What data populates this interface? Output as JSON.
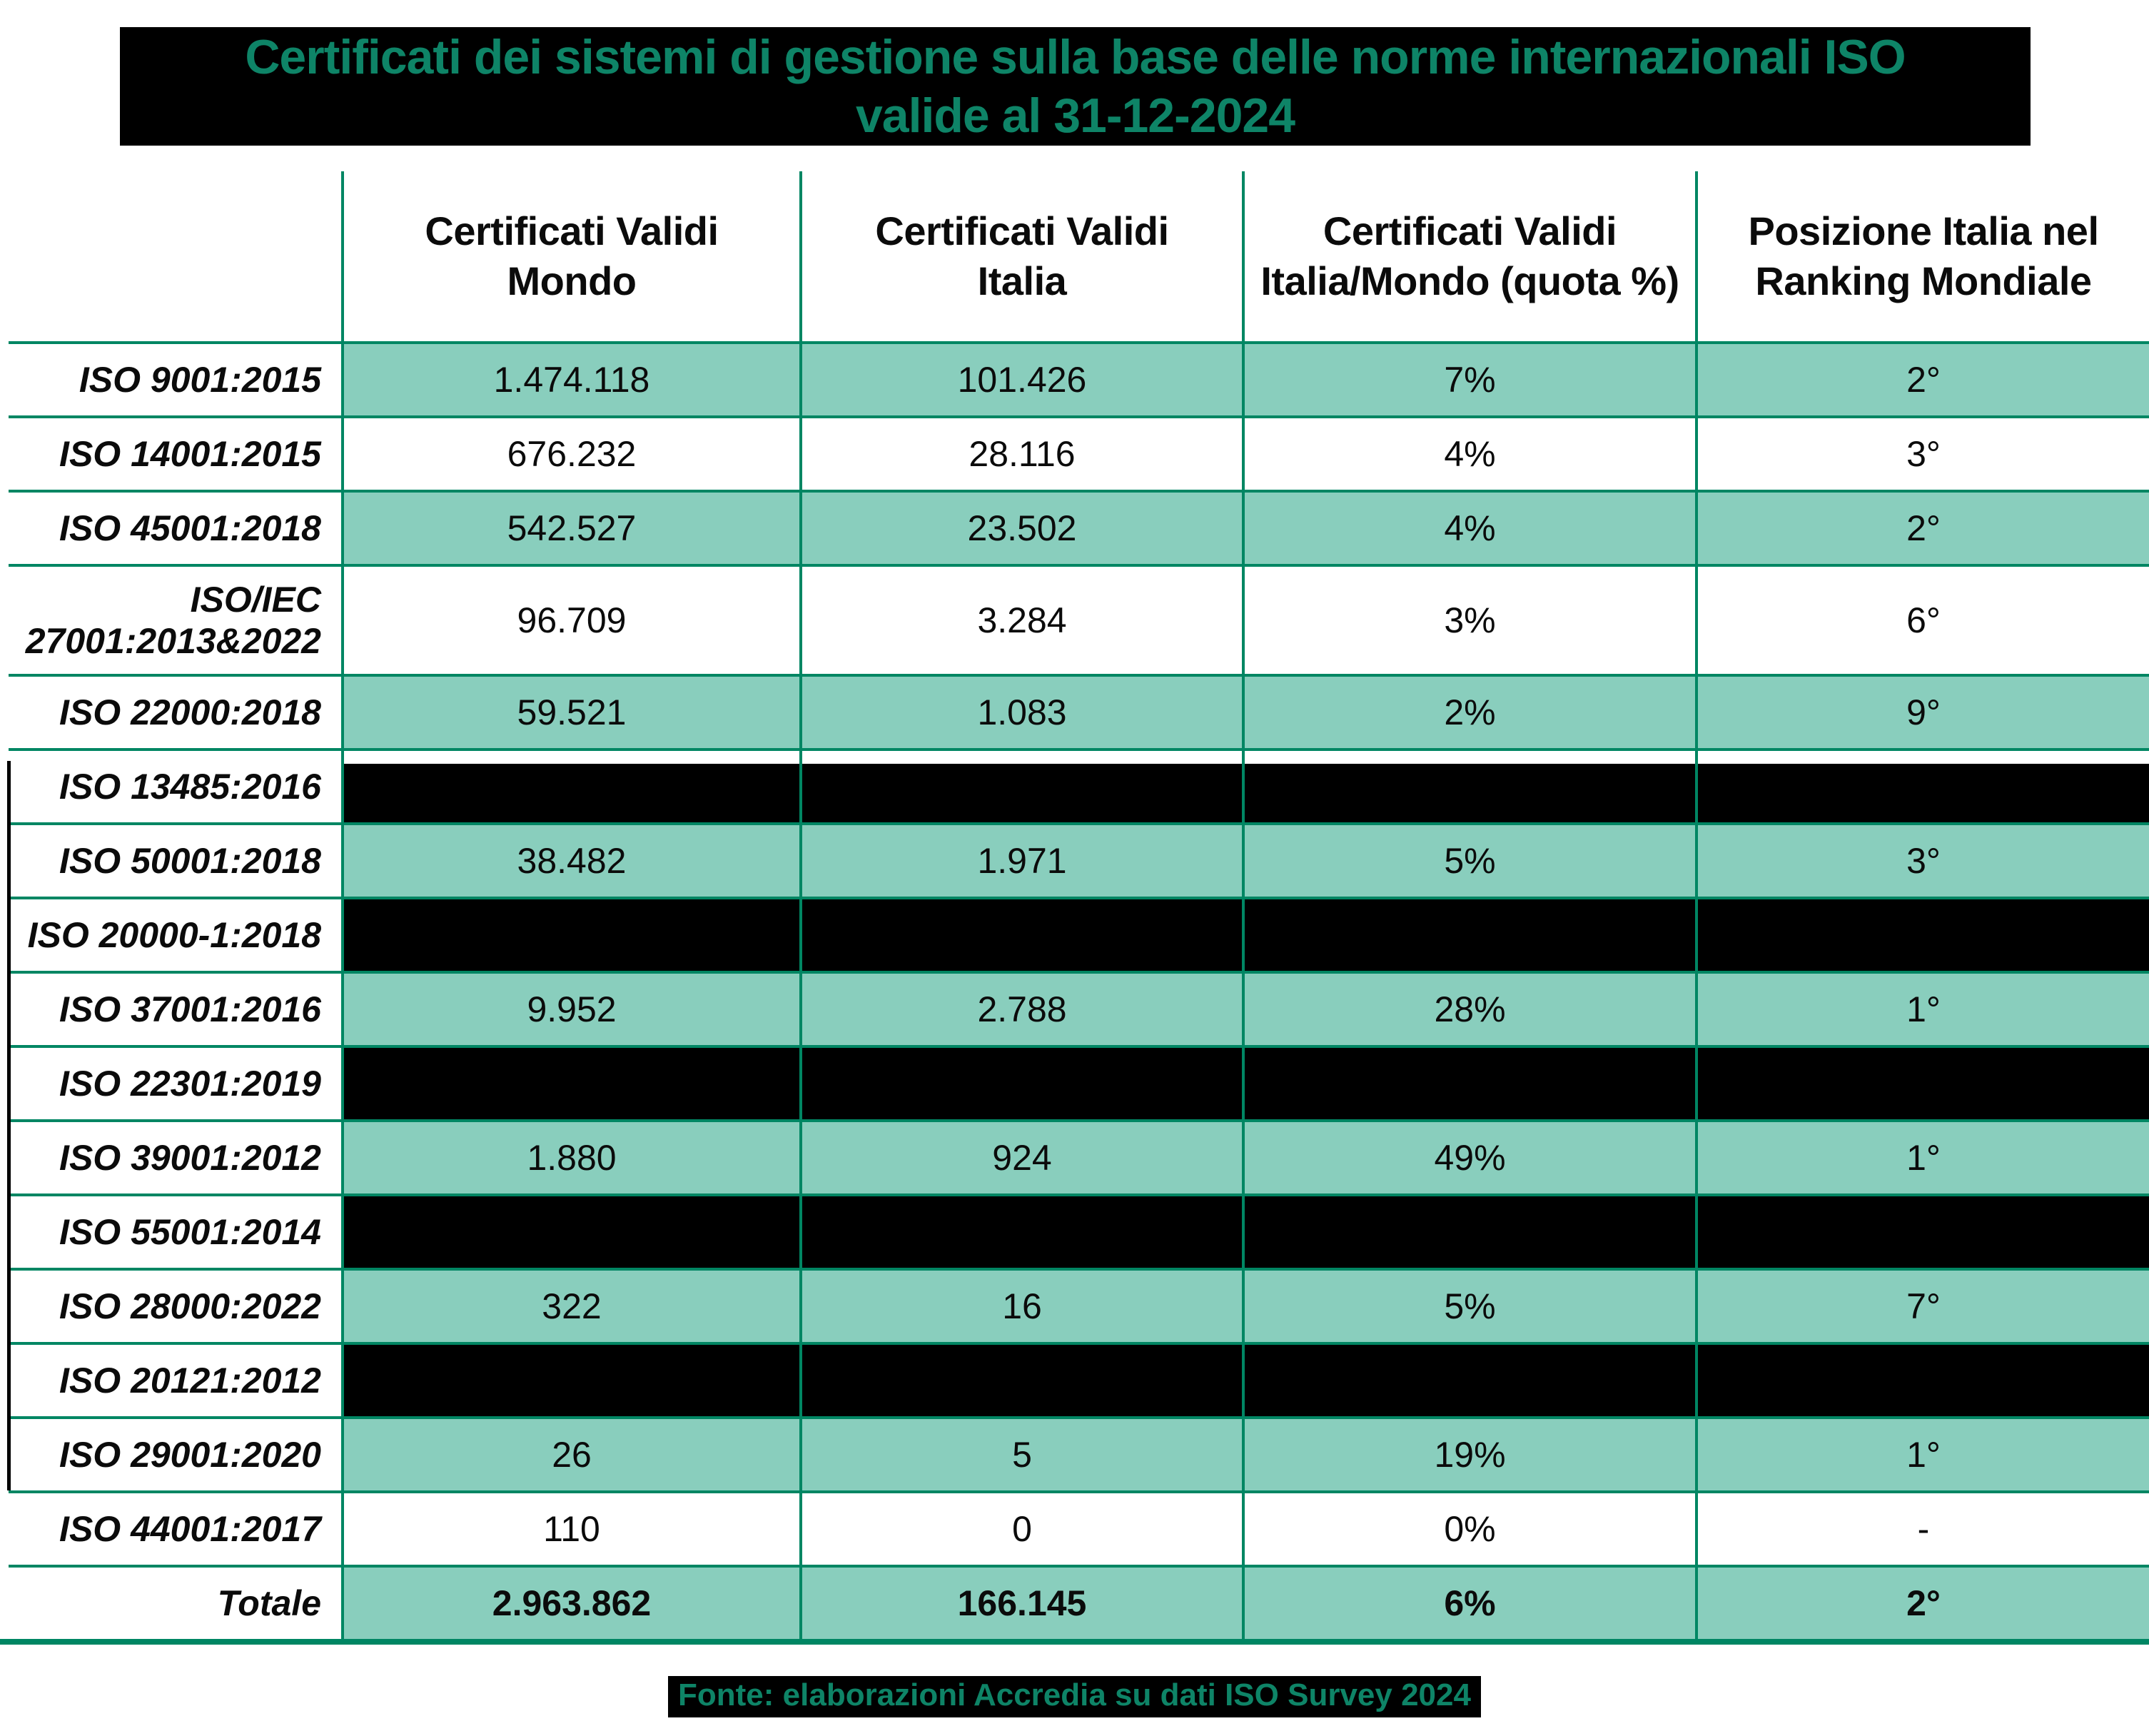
{
  "title": {
    "text": "Certificati dei sistemi di gestione sulla base delle norme internazionali ISO\nvalide al 31-12-2024"
  },
  "footer": {
    "source": "Fonte: elaborazioni Accredia su dati ISO Survey 2024"
  },
  "colors": {
    "accent_green_text": "#0e8467",
    "grid_line_green": "#008663",
    "row_teal": "#89cebd",
    "redaction_black": "#000000",
    "background": "#ffffff"
  },
  "table": {
    "headers": [
      {
        "label": ""
      },
      {
        "label": "Certificati Validi\nMondo"
      },
      {
        "label": "Certificati Validi\nItalia"
      },
      {
        "label": "Certificati Validi\nItalia/Mondo (quota %)"
      },
      {
        "label": "Posizione Italia nel\nRanking Mondiale"
      }
    ]
  },
  "chart_data": {
    "type": "table",
    "title": "Certificati dei sistemi di gestione sulla base delle norme internazionali ISO valide al 31-12-2024",
    "source": "Fonte: elaborazioni Accredia su dati ISO Survey 2024",
    "columns": [
      "",
      "Certificati Validi Mondo",
      "Certificati Validi Italia",
      "Certificati Validi Italia/Mondo (quota %)",
      "Posizione Italia nel Ranking Mondiale"
    ],
    "rows": [
      {
        "label": "ISO 9001:2015",
        "mondo": "1.474.118",
        "italia": "101.426",
        "quota": "7%",
        "ranking": "2°",
        "shaded": true
      },
      {
        "label": "ISO 14001:2015",
        "mondo": "676.232",
        "italia": "28.116",
        "quota": "4%",
        "ranking": "3°",
        "shaded": false
      },
      {
        "label": "ISO 45001:2018",
        "mondo": "542.527",
        "italia": "23.502",
        "quota": "4%",
        "ranking": "2°",
        "shaded": true
      },
      {
        "label": "ISO/IEC\n27001:2013&2022",
        "mondo": "96.709",
        "italia": "3.284",
        "quota": "3%",
        "ranking": "6°",
        "shaded": false,
        "tall": true
      },
      {
        "label": "ISO 22000:2018",
        "mondo": "59.521",
        "italia": "1.083",
        "quota": "2%",
        "ranking": "9°",
        "shaded": true
      },
      {
        "label": "ISO 13485:2016",
        "mondo": null,
        "italia": null,
        "quota": null,
        "ranking": null,
        "redacted": true,
        "gap_top": true
      },
      {
        "label": "ISO 50001:2018",
        "mondo": "38.482",
        "italia": "1.971",
        "quota": "5%",
        "ranking": "3°",
        "shaded": true
      },
      {
        "label": "ISO 20000-1:2018",
        "mondo": null,
        "italia": null,
        "quota": null,
        "ranking": null,
        "redacted": true
      },
      {
        "label": "ISO 37001:2016",
        "mondo": "9.952",
        "italia": "2.788",
        "quota": "28%",
        "ranking": "1°",
        "shaded": true
      },
      {
        "label": "ISO 22301:2019",
        "mondo": null,
        "italia": null,
        "quota": null,
        "ranking": null,
        "redacted": true
      },
      {
        "label": "ISO 39001:2012",
        "mondo": "1.880",
        "italia": "924",
        "quota": "49%",
        "ranking": "1°",
        "shaded": true
      },
      {
        "label": "ISO 55001:2014",
        "mondo": null,
        "italia": null,
        "quota": null,
        "ranking": null,
        "redacted": true
      },
      {
        "label": "ISO 28000:2022",
        "mondo": "322",
        "italia": "16",
        "quota": "5%",
        "ranking": "7°",
        "shaded": true
      },
      {
        "label": "ISO 20121:2012",
        "mondo": null,
        "italia": null,
        "quota": null,
        "ranking": null,
        "redacted": true
      },
      {
        "label": "ISO 29001:2020",
        "mondo": "26",
        "italia": "5",
        "quota": "19%",
        "ranking": "1°",
        "shaded": true
      },
      {
        "label": "ISO 44001:2017",
        "mondo": "110",
        "italia": "0",
        "quota": "0%",
        "ranking": "-",
        "shaded": false
      },
      {
        "label": "Totale",
        "mondo": "2.963.862",
        "italia": "166.145",
        "quota": "6%",
        "ranking": "2°",
        "shaded": true,
        "bold": true
      }
    ]
  }
}
